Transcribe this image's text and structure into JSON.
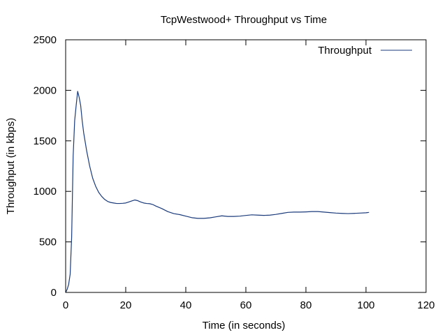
{
  "chart_data": {
    "type": "line",
    "title": "TcpWestwood+ Throughput vs Time",
    "xlabel": "Time (in seconds)",
    "ylabel": "Throughput (in kbps)",
    "xlim": [
      0,
      120
    ],
    "ylim": [
      0,
      2500
    ],
    "xticks": [
      0,
      20,
      40,
      60,
      80,
      100,
      120
    ],
    "yticks": [
      0,
      500,
      1000,
      1500,
      2000,
      2500
    ],
    "grid": false,
    "legend_position": "top-right",
    "series": [
      {
        "name": "Throughput",
        "color": "#1a3a7a",
        "x": [
          0,
          0.5,
          1,
          1.5,
          2,
          2.5,
          3,
          3.5,
          4,
          4.5,
          5,
          5.5,
          6,
          7,
          8,
          9,
          10,
          11,
          12,
          13,
          14,
          15,
          16,
          17,
          18,
          19,
          20,
          21,
          22,
          23,
          24,
          25,
          26,
          27,
          28,
          29,
          30,
          32,
          34,
          36,
          38,
          40,
          42,
          44,
          46,
          48,
          50,
          52,
          54,
          56,
          58,
          60,
          62,
          64,
          66,
          68,
          70,
          72,
          74,
          76,
          78,
          80,
          82,
          84,
          86,
          88,
          90,
          92,
          94,
          96,
          98,
          100,
          101
        ],
        "y": [
          0,
          30,
          80,
          180,
          550,
          1350,
          1700,
          1850,
          1990,
          1930,
          1850,
          1700,
          1580,
          1400,
          1250,
          1130,
          1050,
          990,
          950,
          920,
          900,
          890,
          885,
          880,
          880,
          882,
          885,
          895,
          905,
          915,
          908,
          895,
          885,
          880,
          878,
          870,
          855,
          830,
          800,
          780,
          770,
          755,
          740,
          733,
          733,
          738,
          748,
          758,
          752,
          752,
          755,
          762,
          768,
          765,
          762,
          765,
          772,
          782,
          792,
          795,
          795,
          797,
          800,
          800,
          795,
          790,
          785,
          782,
          780,
          782,
          785,
          788,
          792
        ]
      }
    ]
  }
}
